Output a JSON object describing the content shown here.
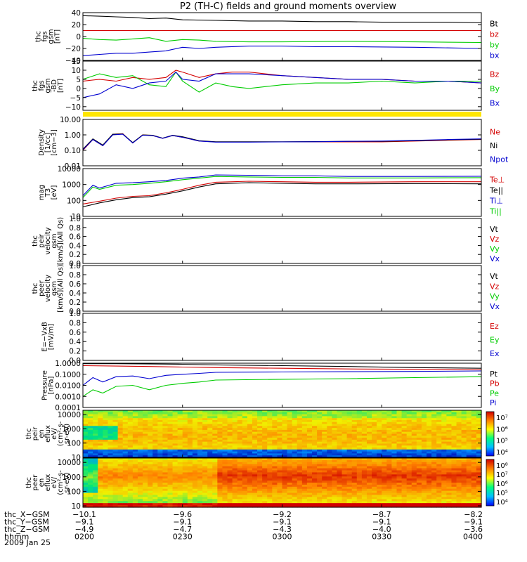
{
  "title": "P2 (TH-C) fields and ground moments overview",
  "date": "2009 Jan 25",
  "colors": {
    "black": "#000000",
    "red": "#d40000",
    "green": "#00cc00",
    "blue": "#0000d0",
    "yellow": "#ffe600"
  },
  "chart_data": [
    {
      "id": "fgs_gsm",
      "type": "line",
      "ylabel": [
        "thc",
        "fgs",
        "gsm",
        "[nT]"
      ],
      "ylim": [
        -40,
        40
      ],
      "yticks": [
        "40",
        "20",
        "0",
        "−20",
        "−40"
      ],
      "tick_values": [
        40,
        20,
        0,
        -20,
        -40
      ],
      "series": [
        {
          "name": "Bt",
          "color": "#000000",
          "x": [
            0,
            5,
            10,
            15,
            20,
            25,
            30,
            40,
            50,
            60,
            70,
            80,
            90,
            100,
            110,
            120
          ],
          "y": [
            35,
            34,
            33,
            32,
            30,
            31,
            28,
            27,
            26,
            26,
            25,
            25,
            24,
            24,
            24,
            23
          ]
        },
        {
          "name": "bz",
          "color": "#d40000",
          "x": [
            0,
            10,
            20,
            30,
            40,
            60,
            80,
            100,
            120
          ],
          "y": [
            10,
            10,
            10,
            10,
            10,
            10,
            10,
            10,
            10
          ]
        },
        {
          "name": "by",
          "color": "#00cc00",
          "x": [
            0,
            5,
            10,
            15,
            20,
            25,
            30,
            35,
            40,
            50,
            60,
            80,
            100,
            120
          ],
          "y": [
            -3,
            -5,
            -6,
            -4,
            -2,
            -8,
            -5,
            -6,
            -8,
            -9,
            -9,
            -8,
            -9,
            -10
          ]
        },
        {
          "name": "bx",
          "color": "#0000d0",
          "x": [
            0,
            5,
            10,
            15,
            20,
            25,
            30,
            35,
            40,
            50,
            60,
            70,
            80,
            100,
            120
          ],
          "y": [
            -32,
            -30,
            -28,
            -28,
            -26,
            -24,
            -18,
            -20,
            -18,
            -16,
            -16,
            -17,
            -17,
            -18,
            -20
          ]
        }
      ]
    },
    {
      "id": "fgs_gsm_zoom",
      "type": "line",
      "ylabel": [
        "thc",
        "fgs",
        "gsm",
        "-BD",
        "[nT]"
      ],
      "ylim": [
        -12,
        15
      ],
      "yticks": [
        "15",
        "10",
        "5",
        "0",
        "−5",
        "−10"
      ],
      "tick_values": [
        15,
        10,
        5,
        0,
        -5,
        -10
      ],
      "series": [
        {
          "name": "Bz",
          "color": "#d40000",
          "x": [
            0,
            5,
            10,
            15,
            20,
            25,
            28,
            30,
            35,
            40,
            45,
            50,
            60,
            70,
            80,
            90,
            100,
            110,
            120
          ],
          "y": [
            4,
            5,
            4,
            6,
            5,
            6,
            10,
            9,
            6,
            8,
            9,
            9,
            7,
            6,
            5,
            5,
            4,
            4,
            3
          ]
        },
        {
          "name": "By",
          "color": "#00cc00",
          "x": [
            0,
            5,
            10,
            15,
            20,
            25,
            28,
            30,
            35,
            40,
            45,
            50,
            60,
            70,
            80,
            90,
            100,
            110,
            120
          ],
          "y": [
            5,
            8,
            6,
            7,
            2,
            1,
            9,
            4,
            -2,
            3,
            1,
            0,
            2,
            3,
            3,
            4,
            3,
            4,
            4
          ]
        },
        {
          "name": "Bx",
          "color": "#0000d0",
          "x": [
            0,
            5,
            10,
            15,
            20,
            25,
            28,
            30,
            35,
            40,
            45,
            50,
            60,
            70,
            80,
            90,
            100,
            110,
            120
          ],
          "y": [
            -5,
            -3,
            2,
            0,
            3,
            4,
            9,
            5,
            4,
            8,
            8,
            8,
            7,
            6,
            5,
            5,
            4,
            4,
            3
          ]
        }
      ]
    },
    {
      "id": "density",
      "type": "line",
      "yscale": "log",
      "ylabel": [
        "Density",
        "[1/cc]",
        "[cm−3]"
      ],
      "ylim": [
        0.01,
        10
      ],
      "yticks": [
        "10.00",
        "1.00",
        "0.10",
        "0.01"
      ],
      "tick_values": [
        10,
        1,
        0.1,
        0.01
      ],
      "series": [
        {
          "name": "Ne",
          "color": "#d40000",
          "x": [
            0,
            3,
            6,
            9,
            12,
            15,
            18,
            21,
            24,
            27,
            30,
            35,
            40,
            50,
            60,
            70,
            80,
            90,
            100,
            110,
            120
          ],
          "y": [
            0.1,
            0.5,
            0.2,
            1.1,
            1.2,
            0.3,
            1.0,
            0.9,
            0.6,
            0.9,
            0.7,
            0.4,
            0.35,
            0.35,
            0.35,
            0.35,
            0.35,
            0.35,
            0.4,
            0.45,
            0.5
          ]
        },
        {
          "name": "Ni",
          "color": "#000000",
          "x": [
            0,
            3,
            6,
            9,
            12,
            15,
            18,
            21,
            24,
            27,
            30,
            35,
            40,
            50,
            60,
            70,
            80,
            90,
            100,
            110,
            120
          ],
          "y": [
            0.12,
            0.55,
            0.22,
            1.1,
            1.15,
            0.32,
            1.0,
            0.95,
            0.62,
            0.95,
            0.75,
            0.42,
            0.36,
            0.36,
            0.36,
            0.37,
            0.38,
            0.38,
            0.42,
            0.48,
            0.52
          ]
        },
        {
          "name": "Npot",
          "color": "#0000d0",
          "x": [
            0,
            3,
            6,
            9,
            12,
            15,
            18,
            21,
            24,
            27,
            30,
            35,
            40,
            50,
            60,
            70,
            80,
            90,
            100,
            110,
            120
          ],
          "y": [
            0.11,
            0.5,
            0.2,
            1.0,
            1.1,
            0.3,
            0.95,
            0.9,
            0.6,
            0.9,
            0.7,
            0.4,
            0.34,
            0.34,
            0.35,
            0.36,
            0.38,
            0.4,
            0.44,
            0.5,
            0.55
          ]
        }
      ]
    },
    {
      "id": "temperature",
      "type": "line",
      "yscale": "log",
      "ylabel": [
        "mag",
        "T3",
        "[eV]"
      ],
      "ylim": [
        10,
        10000
      ],
      "yticks": [
        "10000",
        "1000",
        "100",
        "10"
      ],
      "tick_values": [
        10000,
        1000,
        100,
        10
      ],
      "series": [
        {
          "name": "Te⊥",
          "color": "#d40000",
          "x": [
            0,
            5,
            10,
            15,
            20,
            25,
            30,
            35,
            40,
            50,
            60,
            70,
            80,
            100,
            120
          ],
          "y": [
            60,
            90,
            140,
            180,
            200,
            300,
            500,
            900,
            1400,
            1600,
            1500,
            1400,
            1400,
            1500,
            1500
          ]
        },
        {
          "name": "Te||",
          "color": "#000000",
          "x": [
            0,
            5,
            10,
            15,
            20,
            25,
            30,
            35,
            40,
            50,
            60,
            70,
            80,
            100,
            120
          ],
          "y": [
            40,
            70,
            110,
            150,
            170,
            250,
            400,
            700,
            1100,
            1300,
            1200,
            1100,
            1100,
            1150,
            1100
          ]
        },
        {
          "name": "Ti⊥",
          "color": "#0000d0",
          "x": [
            0,
            3,
            5,
            10,
            15,
            20,
            25,
            30,
            35,
            40,
            50,
            60,
            70,
            80,
            100,
            120
          ],
          "y": [
            200,
            900,
            600,
            1200,
            1300,
            1500,
            1800,
            2500,
            3000,
            4000,
            3800,
            3500,
            3500,
            3200,
            3200,
            3300
          ]
        },
        {
          "name": "Ti||",
          "color": "#00cc00",
          "x": [
            0,
            3,
            5,
            10,
            15,
            20,
            25,
            30,
            35,
            40,
            50,
            60,
            70,
            80,
            100,
            120
          ],
          "y": [
            150,
            700,
            500,
            900,
            1000,
            1200,
            1500,
            2000,
            2500,
            3200,
            3000,
            2800,
            2800,
            2600,
            2600,
            2700
          ]
        }
      ]
    },
    {
      "id": "peir_velocity",
      "type": "line",
      "ylabel": [
        "thc",
        "peir",
        "velocity",
        "gsm",
        "[km/s](All Qs)"
      ],
      "ylim": [
        0,
        1
      ],
      "yticks": [
        "1.0",
        "0.8",
        "0.6",
        "0.4",
        "0.2",
        "0.0"
      ],
      "tick_values": [
        1.0,
        0.8,
        0.6,
        0.4,
        0.2,
        0.0
      ],
      "series": [
        {
          "name": "Vt",
          "color": "#000000",
          "x": [],
          "y": []
        },
        {
          "name": "Vz",
          "color": "#d40000",
          "x": [],
          "y": []
        },
        {
          "name": "Vy",
          "color": "#00cc00",
          "x": [],
          "y": []
        },
        {
          "name": "Vx",
          "color": "#0000d0",
          "x": [],
          "y": []
        }
      ]
    },
    {
      "id": "peer_velocity",
      "type": "line",
      "ylabel": [
        "thc",
        "peer",
        "velocity",
        "gsm",
        "[km/s](All Qs)"
      ],
      "ylim": [
        0,
        1
      ],
      "yticks": [
        "1.0",
        "0.8",
        "0.6",
        "0.4",
        "0.2",
        "0.0"
      ],
      "tick_values": [
        1.0,
        0.8,
        0.6,
        0.4,
        0.2,
        0.0
      ],
      "series": [
        {
          "name": "Vt",
          "color": "#000000",
          "x": [],
          "y": []
        },
        {
          "name": "Vz",
          "color": "#d40000",
          "x": [],
          "y": []
        },
        {
          "name": "Vy",
          "color": "#00cc00",
          "x": [],
          "y": []
        },
        {
          "name": "Vx",
          "color": "#0000d0",
          "x": [],
          "y": []
        }
      ]
    },
    {
      "id": "efield",
      "type": "line",
      "ylabel": [
        "E=−VxB",
        "[mV/m]"
      ],
      "ylim": [
        0,
        1
      ],
      "yticks": [
        "1.0",
        "0.8",
        "0.6",
        "0.4",
        "0.2",
        "0.0"
      ],
      "tick_values": [
        1.0,
        0.8,
        0.6,
        0.4,
        0.2,
        0.0
      ],
      "series": [
        {
          "name": "Ez",
          "color": "#d40000",
          "x": [],
          "y": []
        },
        {
          "name": "Ey",
          "color": "#00cc00",
          "x": [],
          "y": []
        },
        {
          "name": "Ex",
          "color": "#0000d0",
          "x": [],
          "y": []
        }
      ]
    },
    {
      "id": "pressure",
      "type": "line",
      "yscale": "log",
      "ylabel": [
        "Pressure",
        "[nPa]"
      ],
      "ylim": [
        0.0001,
        1
      ],
      "yticks": [
        "1.0000",
        "0.1000",
        "0.0100",
        "0.0010",
        "0.0001"
      ],
      "tick_values": [
        1,
        0.1,
        0.01,
        0.001,
        0.0001
      ],
      "series": [
        {
          "name": "Pt",
          "color": "#000000",
          "x": [
            0,
            10,
            20,
            30,
            40,
            60,
            80,
            100,
            120
          ],
          "y": [
            0.9,
            0.9,
            0.85,
            0.8,
            0.7,
            0.6,
            0.5,
            0.4,
            0.35
          ]
        },
        {
          "name": "Pb",
          "color": "#d40000",
          "x": [
            0,
            10,
            20,
            30,
            40,
            60,
            80,
            100,
            120
          ],
          "y": [
            0.6,
            0.55,
            0.5,
            0.45,
            0.4,
            0.35,
            0.3,
            0.28,
            0.25
          ]
        },
        {
          "name": "Pe",
          "color": "#00cc00",
          "x": [
            0,
            3,
            6,
            10,
            15,
            20,
            25,
            30,
            35,
            40,
            60,
            80,
            100,
            120
          ],
          "y": [
            0.001,
            0.004,
            0.002,
            0.008,
            0.01,
            0.004,
            0.01,
            0.015,
            0.02,
            0.03,
            0.035,
            0.04,
            0.05,
            0.06
          ]
        },
        {
          "name": "Pi",
          "color": "#0000d0",
          "x": [
            0,
            3,
            6,
            10,
            15,
            20,
            25,
            30,
            35,
            40,
            60,
            80,
            100,
            120
          ],
          "y": [
            0.01,
            0.05,
            0.02,
            0.06,
            0.07,
            0.04,
            0.08,
            0.1,
            0.12,
            0.15,
            0.16,
            0.17,
            0.18,
            0.2
          ]
        }
      ]
    },
    {
      "id": "peir_flux",
      "type": "heatmap",
      "ylabel": [
        "thc",
        "peir",
        "en",
        "eflux",
        "eV/",
        "(cm²-s-",
        "sr-eV)"
      ],
      "yscale": "log",
      "ylim": [
        10,
        20000
      ],
      "yticks": [
        "10000",
        "1000",
        "100",
        "10"
      ],
      "tick_values": [
        10000,
        1000,
        100,
        10
      ],
      "colorbar": {
        "min_exp": 4,
        "max_exp": 7,
        "labels": [
          "10⁷",
          "10⁶",
          "10⁵",
          "10⁴"
        ]
      }
    },
    {
      "id": "peer_flux",
      "type": "heatmap",
      "ylabel": [
        "thc",
        "peer",
        "en",
        "eflux",
        "eV/",
        "(cm²-s-",
        "sr-eV)"
      ],
      "yscale": "log",
      "ylim": [
        8,
        20000
      ],
      "yticks": [
        "10000",
        "1000",
        "100",
        "10"
      ],
      "tick_values": [
        10000,
        1000,
        100,
        10
      ],
      "colorbar": {
        "min_exp": 4,
        "max_exp": 8,
        "labels": [
          "10⁸",
          "10⁷",
          "10⁶",
          "10⁵",
          "10⁴"
        ]
      }
    }
  ],
  "xaxis": {
    "rows": [
      {
        "label": "thc_X−GSM",
        "values": [
          "−10.1",
          "−9.6",
          "−9.2",
          "−8.7",
          "−8.2"
        ]
      },
      {
        "label": "thc_Y−GSM",
        "values": [
          "−9.1",
          "−9.1",
          "−9.1",
          "−9.1",
          "−9.1"
        ]
      },
      {
        "label": "thc_Z−GSM",
        "values": [
          "−4.9",
          "−4.7",
          "−4.3",
          "−4.0",
          "−3.6"
        ]
      },
      {
        "label": "hhmm",
        "values": [
          "0200",
          "0230",
          "0300",
          "0330",
          "0400"
        ]
      }
    ],
    "tick_minutes": [
      0,
      30,
      60,
      90,
      120
    ]
  }
}
